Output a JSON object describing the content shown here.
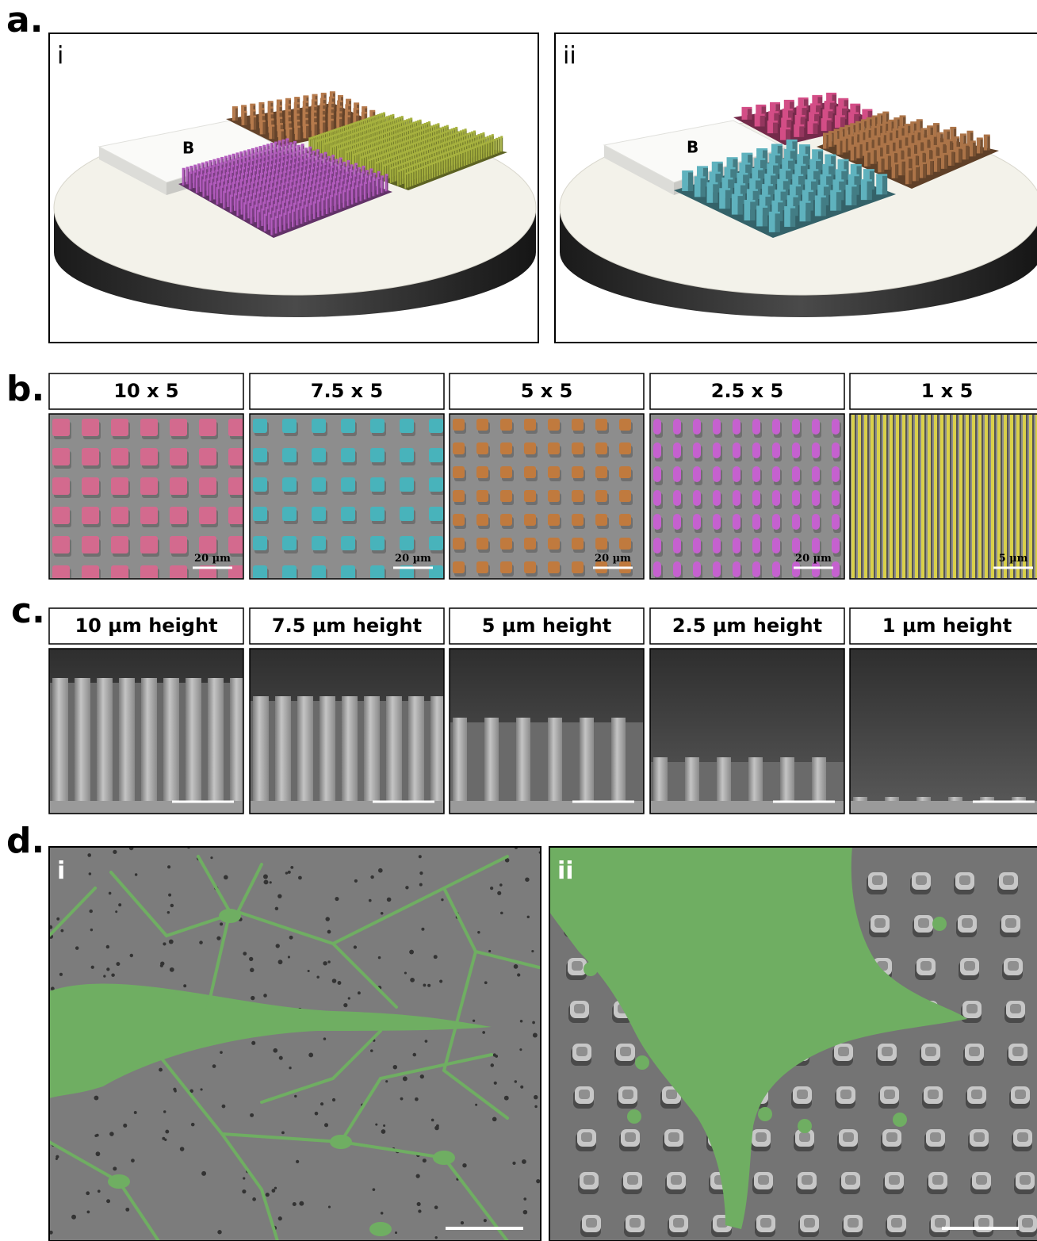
{
  "panels": {
    "a": {
      "label": "a.",
      "subpanels": [
        {
          "label": "i",
          "block_label": "B"
        },
        {
          "label": "ii",
          "block_label": "B"
        }
      ]
    },
    "b": {
      "label": "b.",
      "columns": [
        {
          "title": "10 x 5",
          "scale_bar": "20 µm"
        },
        {
          "title": "7.5 x 5",
          "scale_bar": "20 µm"
        },
        {
          "title": "5 x 5",
          "scale_bar": "20 µm"
        },
        {
          "title": "2.5 x 5",
          "scale_bar": "20 µm"
        },
        {
          "title": "1 x 5",
          "scale_bar": "5 µm"
        }
      ]
    },
    "c": {
      "label": "c.",
      "columns": [
        "10 µm height",
        "7.5 µm height",
        "5 µm height",
        "2.5 µm height",
        "1 µm height"
      ]
    },
    "d": {
      "label": "d.",
      "subpanels": [
        "i",
        "ii"
      ]
    }
  }
}
